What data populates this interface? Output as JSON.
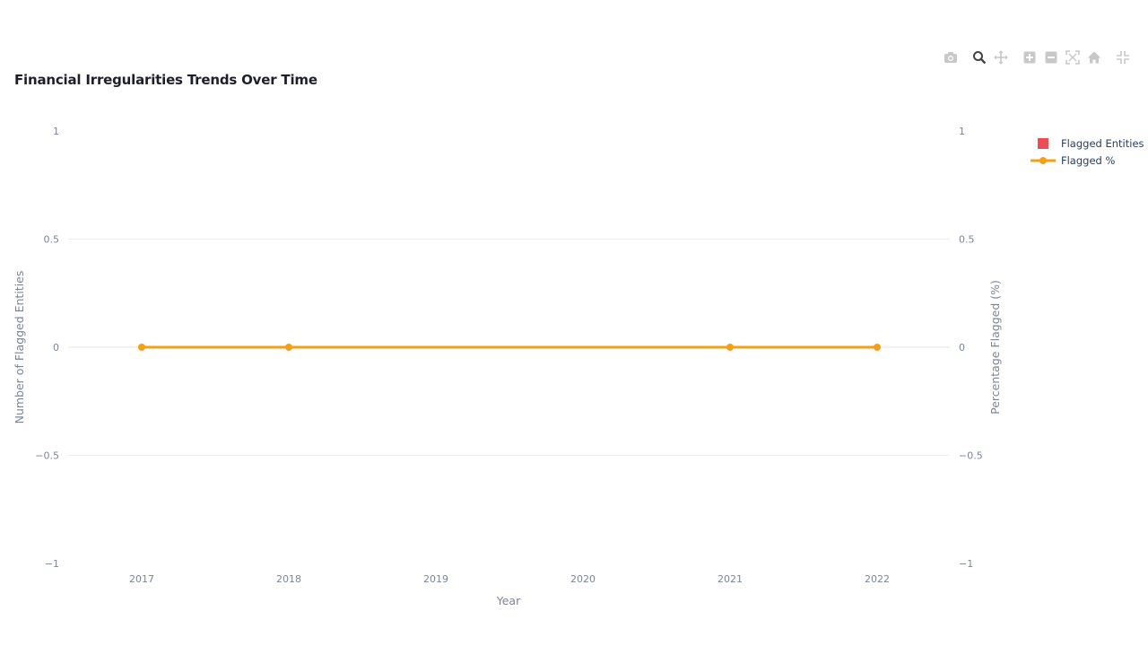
{
  "title": "Financial Irregularities Trends Over Time",
  "modebar": [
    {
      "name": "camera-icon",
      "label": "Download plot as a png"
    },
    {
      "name": "zoom-icon",
      "label": "Zoom"
    },
    {
      "name": "pan-icon",
      "label": "Pan"
    },
    {
      "name": "zoom-in-icon",
      "label": "Zoom in"
    },
    {
      "name": "zoom-out-icon",
      "label": "Zoom out"
    },
    {
      "name": "autoscale-icon",
      "label": "Autoscale"
    },
    {
      "name": "home-icon",
      "label": "Reset axes"
    },
    {
      "name": "spike-lines-icon",
      "label": "Toggle spike lines"
    }
  ],
  "legend": {
    "entries": [
      {
        "label": "Flagged Entities",
        "color": "#ef4b55",
        "kind": "bar"
      },
      {
        "label": "Flagged %",
        "color": "#f5a014",
        "kind": "line"
      }
    ]
  },
  "chart_data": {
    "type": "bar",
    "title": "Financial Irregularities Trends Over Time",
    "xlabel": "Year",
    "ylabel": "Number of Flagged Entities",
    "y2label": "Percentage Flagged (%)",
    "categories": [
      "2017",
      "2018",
      "2019",
      "2020",
      "2021",
      "2022"
    ],
    "ylim": [
      -1,
      1
    ],
    "y2lim": [
      -1,
      1
    ],
    "yticks": [
      "1",
      "0.5",
      "0",
      "−0.5",
      "−1"
    ],
    "y2ticks": [
      "1",
      "0.5",
      "0",
      "−0.5",
      "−1"
    ],
    "grid": true,
    "legend_position": "top-right",
    "series": [
      {
        "name": "Flagged Entities",
        "type": "bar",
        "axis": "y",
        "color": "#ef4b55",
        "x": [
          "2017",
          "2018",
          "2019",
          "2020",
          "2021",
          "2022"
        ],
        "values": [
          0,
          0,
          0,
          0,
          0,
          0
        ]
      },
      {
        "name": "Flagged %",
        "type": "line",
        "axis": "y2",
        "color": "#f5a014",
        "x": [
          "2017",
          "2018",
          "2021",
          "2022"
        ],
        "values": [
          0,
          0,
          0,
          0
        ]
      }
    ]
  }
}
